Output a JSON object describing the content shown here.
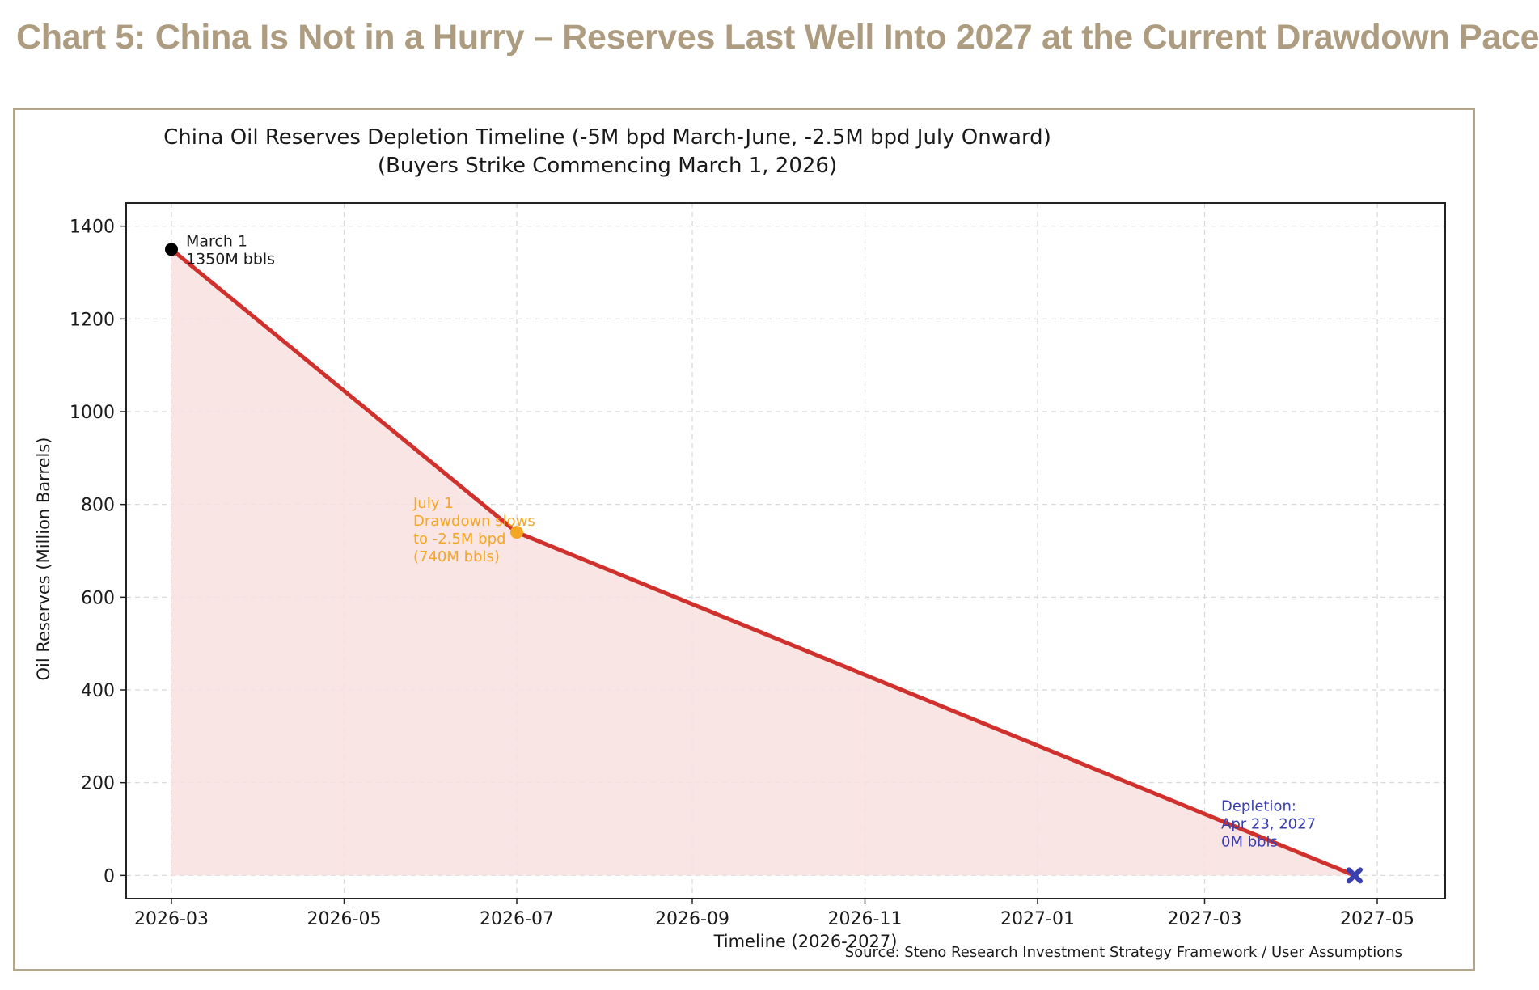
{
  "heading": "Chart 5: China Is Not in a Hurry – Reserves Last Well Into 2027 at the Current Drawdown Pace",
  "colors": {
    "heading": "#ad9c80",
    "frame": "#b3a68e",
    "line": "#d0312d",
    "fill": "#f9e0e0",
    "start_marker": "#000000",
    "mid_marker": "#f5a623",
    "end_marker": "#3a3fb0",
    "mid_annotation": "#f5a623",
    "end_annotation": "#3a3fb0"
  },
  "chart_data": {
    "type": "line",
    "title": "China Oil Reserves Depletion Timeline (-5M bpd March-June, -2.5M bpd July Onward)",
    "subtitle": "(Buyers Strike Commencing March 1, 2026)",
    "xlabel": "Timeline (2026-2027)",
    "ylabel": "Oil Reserves (Million Barrels)",
    "x_ticks": [
      "2026-03",
      "2026-05",
      "2026-07",
      "2026-09",
      "2026-11",
      "2027-01",
      "2027-03",
      "2027-05"
    ],
    "xlim": [
      "2026-03-01",
      "2027-05-01"
    ],
    "ylim": [
      0,
      1400
    ],
    "y_ticks": [
      0,
      200,
      400,
      600,
      800,
      1000,
      1200,
      1400
    ],
    "grid": true,
    "fill_under_line": true,
    "series": [
      {
        "x": [
          "2026-03-01",
          "2026-07-01",
          "2027-04-23"
        ],
        "y": [
          1350,
          740,
          0
        ]
      }
    ],
    "annotations": [
      {
        "x": "2026-03-01",
        "y": 1350,
        "marker": "circle",
        "lines": [
          "March 1",
          "1350M bbls"
        ]
      },
      {
        "x": "2026-07-01",
        "y": 740,
        "marker": "circle",
        "lines": [
          "July 1",
          "Drawdown slows",
          "to -2.5M bpd",
          "(740M bbls)"
        ]
      },
      {
        "x": "2027-04-23",
        "y": 0,
        "marker": "x",
        "lines": [
          "Depletion:",
          "Apr 23, 2027",
          "0M bbls"
        ]
      }
    ],
    "source": "Source: Steno Research Investment Strategy Framework / User Assumptions"
  }
}
